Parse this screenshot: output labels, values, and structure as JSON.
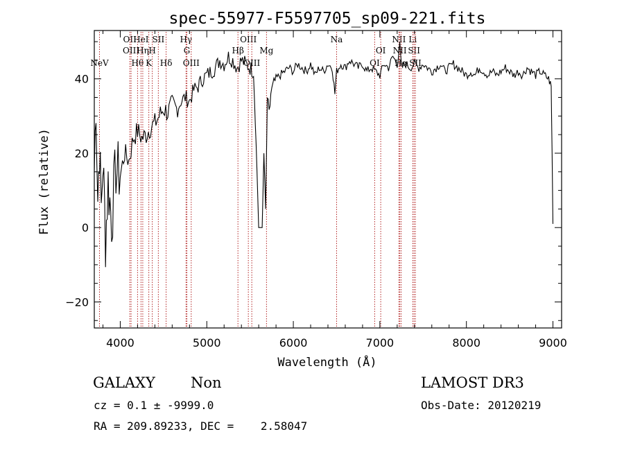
{
  "chart_data": {
    "type": "line",
    "title": "spec-55977-F5597705_sp09-221.fits",
    "xlabel": "Wavelength (Å)",
    "ylabel": "Flux (relative)",
    "xlim": [
      3700,
      9100
    ],
    "ylim": [
      -27,
      53
    ],
    "xticks": [
      4000,
      5000,
      6000,
      7000,
      8000,
      9000
    ],
    "yticks": [
      -20,
      0,
      20,
      40
    ],
    "series": [
      {
        "name": "flux",
        "x": [
          3700,
          3720,
          3740,
          3760,
          3780,
          3800,
          3830,
          3860,
          3900,
          3950,
          4000,
          4050,
          4100,
          4150,
          4200,
          4250,
          4300,
          4350,
          4400,
          4450,
          4500,
          4550,
          4600,
          4650,
          4700,
          4750,
          4800,
          4850,
          4900,
          4950,
          5000,
          5050,
          5100,
          5150,
          5200,
          5250,
          5300,
          5350,
          5400,
          5450,
          5500,
          5540,
          5560,
          5600,
          5640,
          5660,
          5680,
          5700,
          5720,
          5740,
          5800,
          5850,
          5900,
          5950,
          6000,
          6050,
          6100,
          6150,
          6200,
          6250,
          6300,
          6350,
          6400,
          6450,
          6480,
          6500,
          6550,
          6600,
          6650,
          6700,
          6750,
          6800,
          6850,
          6900,
          6950,
          7000,
          7050,
          7100,
          7150,
          7200,
          7230,
          7250,
          7300,
          7350,
          7400,
          7450,
          7500,
          7550,
          7600,
          7650,
          7700,
          7750,
          7800,
          7850,
          7900,
          7950,
          8000,
          8050,
          8100,
          8150,
          8200,
          8250,
          8300,
          8350,
          8400,
          8450,
          8500,
          8550,
          8600,
          8650,
          8700,
          8750,
          8800,
          8850,
          8900,
          8950,
          8980,
          8990,
          9000
        ],
        "y": [
          15,
          35,
          8,
          22,
          5,
          18,
          -3,
          12,
          2,
          16,
          14,
          20,
          18,
          24,
          26,
          24,
          25,
          27,
          28,
          30,
          32,
          31,
          33,
          32,
          34,
          35,
          34,
          37,
          38,
          40,
          41,
          42,
          43,
          45,
          44,
          46,
          45,
          43,
          45,
          44,
          43,
          42,
          30,
          0,
          0,
          20,
          5,
          35,
          30,
          36,
          40,
          41,
          42,
          43,
          42,
          44,
          43,
          42,
          44,
          41,
          43,
          42,
          44,
          43,
          36,
          42,
          44,
          43,
          45,
          44,
          43,
          44,
          42,
          43,
          42,
          41,
          44,
          43,
          46,
          44,
          49,
          43,
          44,
          43,
          44,
          43,
          44,
          43,
          42,
          43,
          44,
          42,
          43,
          44,
          43,
          42,
          41,
          42,
          41,
          43,
          42,
          41,
          42,
          41,
          42,
          43,
          42,
          41,
          42,
          41,
          43,
          42,
          41,
          42,
          41,
          40,
          38,
          20,
          1
        ]
      }
    ],
    "line_markers": [
      {
        "label": "NeV",
        "x": 3760,
        "row": 3
      },
      {
        "label": "OII",
        "x": 4110,
        "row": 1
      },
      {
        "label": "OIII",
        "x": 4125,
        "row": 2
      },
      {
        "label": "Hθ",
        "x": 4200,
        "row": 3
      },
      {
        "label": "HeI",
        "x": 4240,
        "row": 1
      },
      {
        "label": "Hη",
        "x": 4260,
        "row": 2
      },
      {
        "label": "K",
        "x": 4330,
        "row": 3
      },
      {
        "label": "H",
        "x": 4370,
        "row": 2
      },
      {
        "label": "SII",
        "x": 4440,
        "row": 1
      },
      {
        "label": "Hδ",
        "x": 4530,
        "row": 3
      },
      {
        "label": "Hγ",
        "x": 4760,
        "row": 1
      },
      {
        "label": "G",
        "x": 4770,
        "row": 2
      },
      {
        "label": "OIII",
        "x": 4820,
        "row": 3
      },
      {
        "label": "Hβ",
        "x": 5360,
        "row": 2
      },
      {
        "label": "OIII",
        "x": 5480,
        "row": 1
      },
      {
        "label": "OIII",
        "x": 5520,
        "row": 3
      },
      {
        "label": "Mg",
        "x": 5690,
        "row": 2
      },
      {
        "label": "Na",
        "x": 6500,
        "row": 1
      },
      {
        "label": "OI",
        "x": 6940,
        "row": 3
      },
      {
        "label": "OI",
        "x": 7010,
        "row": 2
      },
      {
        "label": "NII",
        "x": 7220,
        "row": 1
      },
      {
        "label": "NII",
        "x": 7230,
        "row": 2
      },
      {
        "label": "Hα",
        "x": 7245,
        "row": 3
      },
      {
        "label": "Li",
        "x": 7380,
        "row": 1
      },
      {
        "label": "SII",
        "x": 7395,
        "row": 2
      },
      {
        "label": "SII",
        "x": 7410,
        "row": 3
      }
    ],
    "line_color": "#b22222"
  },
  "footer": {
    "object_class": "GALAXY",
    "subclass": "Non",
    "survey": "LAMOST DR3",
    "cz": "cz = 0.1 ± -9999.0",
    "obs_date": "Obs-Date: 20120219",
    "radec": "RA = 209.89233, DEC =    2.58047"
  }
}
